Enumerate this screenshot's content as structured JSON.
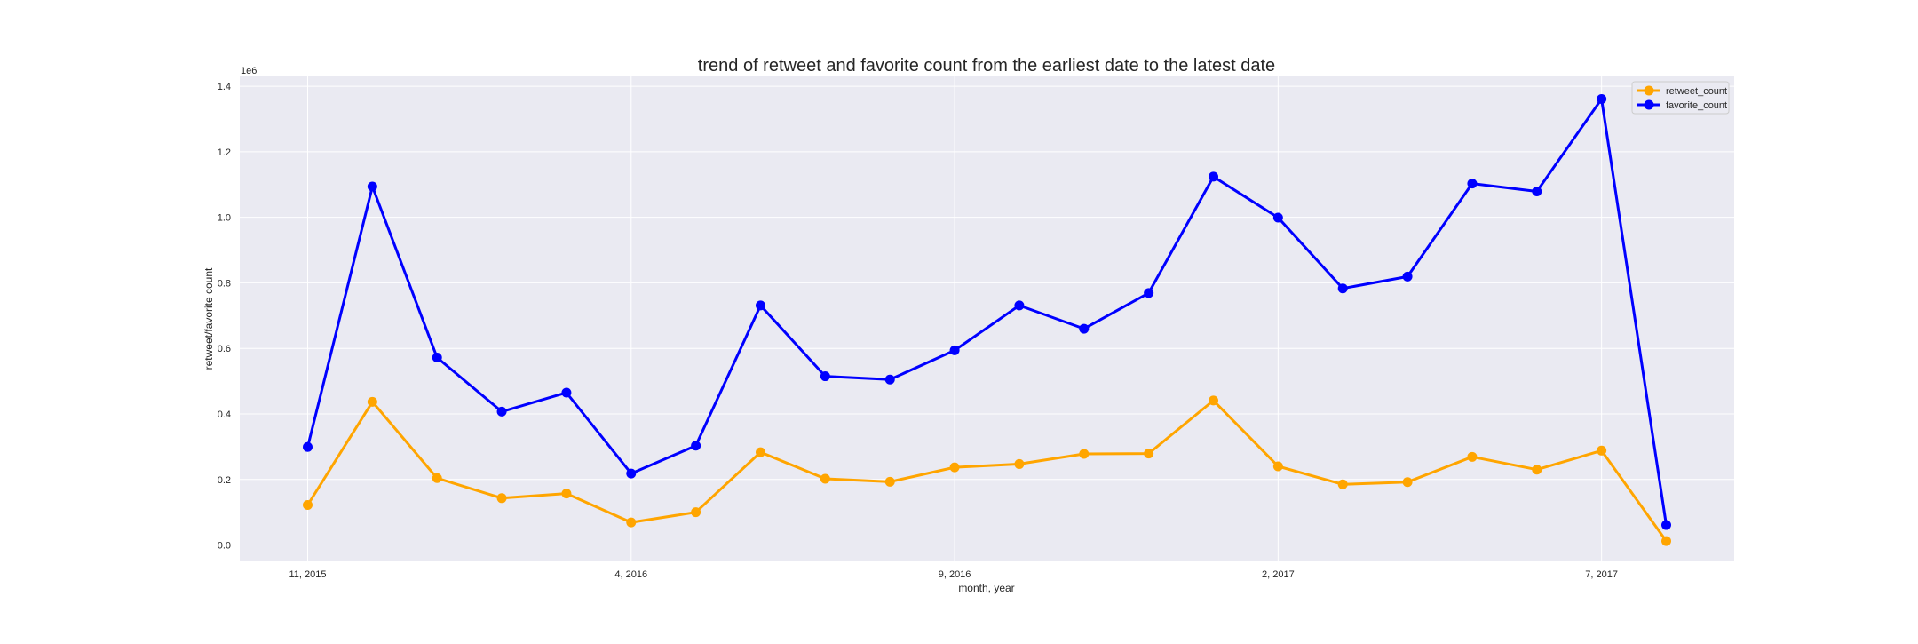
{
  "chart_data": {
    "type": "line",
    "title": "trend of retweet and favorite count from the earliest date to the latest date",
    "xlabel": "month, year",
    "ylabel": "retweet/favorite count",
    "y_scale_label": "1e6",
    "x_tick_labels": [
      "11, 2015",
      "4, 2016",
      "9, 2016",
      "2, 2017",
      "7, 2017"
    ],
    "x_tick_positions": [
      0,
      5,
      10,
      15,
      20
    ],
    "x": [
      0,
      1,
      2,
      3,
      4,
      5,
      6,
      7,
      8,
      9,
      10,
      11,
      12,
      13,
      14,
      15,
      16,
      17,
      18,
      19,
      20,
      21
    ],
    "xlim": [
      -1.05,
      22.05
    ],
    "ylim": [
      -0.05,
      1.43
    ],
    "y_ticks": [
      0.0,
      0.2,
      0.4,
      0.6,
      0.8,
      1.0,
      1.2,
      1.4
    ],
    "y_tick_labels": [
      "0.0",
      "0.2",
      "0.4",
      "0.6",
      "0.8",
      "1.0",
      "1.2",
      "1.4"
    ],
    "grid": true,
    "legend_position": "top-right",
    "series": [
      {
        "name": "retweet_count",
        "color": "#FFA500",
        "values": [
          0.122,
          0.437,
          0.204,
          0.143,
          0.157,
          0.069,
          0.1,
          0.283,
          0.202,
          0.193,
          0.237,
          0.247,
          0.278,
          0.279,
          0.441,
          0.24,
          0.185,
          0.192,
          0.269,
          0.23,
          0.288,
          0.012
        ]
      },
      {
        "name": "favorite_count",
        "color": "#0000FF",
        "values": [
          0.299,
          1.094,
          0.572,
          0.407,
          0.465,
          0.218,
          0.303,
          0.731,
          0.515,
          0.505,
          0.594,
          0.731,
          0.66,
          0.769,
          1.124,
          0.999,
          0.783,
          0.819,
          1.103,
          1.079,
          1.361,
          0.061
        ]
      }
    ]
  }
}
